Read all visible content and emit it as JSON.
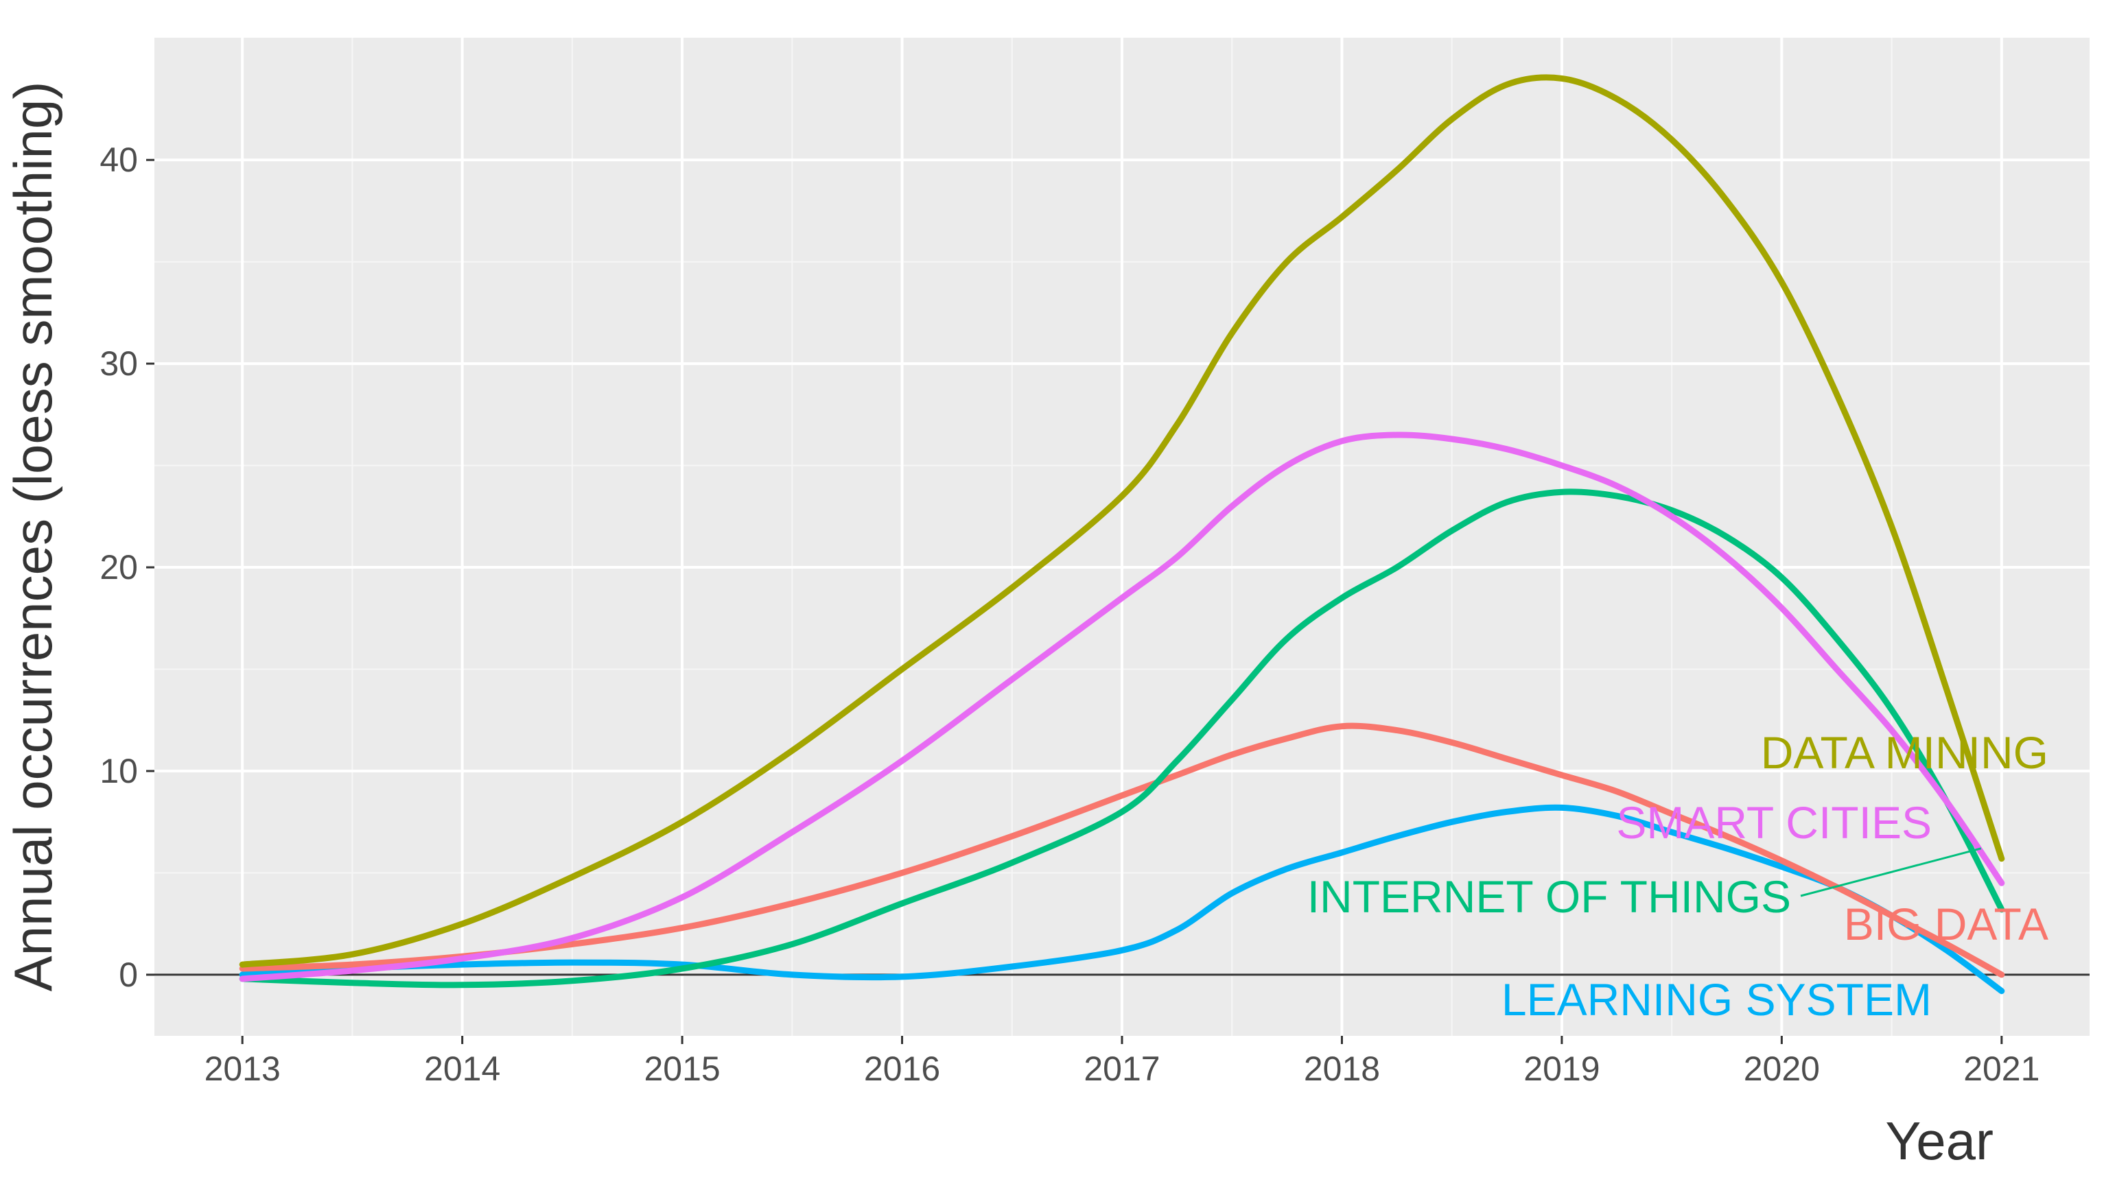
{
  "chart_data": {
    "type": "line",
    "title": "",
    "xlabel": "Year",
    "ylabel": "Annual occurrences (loess smoothing)",
    "xlim": [
      2012.6,
      2021.4
    ],
    "ylim": [
      -3,
      46
    ],
    "xticks": [
      2013,
      2014,
      2015,
      2016,
      2017,
      2018,
      2019,
      2020,
      2021
    ],
    "yticks": [
      0,
      10,
      20,
      30,
      40
    ],
    "hline": 0,
    "grid": true,
    "series": [
      {
        "name": "DATA MINING",
        "color": "#a3a500",
        "label": "DATA MINING",
        "x": [
          2013,
          2013.5,
          2014,
          2014.5,
          2015,
          2015.5,
          2016,
          2016.5,
          2017,
          2017.25,
          2017.5,
          2017.75,
          2018,
          2018.25,
          2018.5,
          2018.75,
          2019,
          2019.25,
          2019.5,
          2019.75,
          2020,
          2020.25,
          2020.5,
          2020.75,
          2021
        ],
        "y": [
          0.5,
          1.0,
          2.5,
          4.8,
          7.5,
          11.0,
          15.0,
          19.0,
          23.5,
          27.0,
          31.5,
          35.0,
          37.2,
          39.5,
          42.0,
          43.7,
          44.0,
          43.0,
          41.0,
          38.0,
          34.0,
          28.5,
          22.0,
          14.0,
          5.7
        ]
      },
      {
        "name": "SMART CITIES",
        "color": "#e76bf3",
        "label": "SMART CITIES",
        "x": [
          2013,
          2013.5,
          2014,
          2014.5,
          2015,
          2015.5,
          2016,
          2016.5,
          2017,
          2017.25,
          2017.5,
          2017.75,
          2018,
          2018.25,
          2018.5,
          2018.75,
          2019,
          2019.25,
          2019.5,
          2019.75,
          2020,
          2020.25,
          2020.5,
          2020.75,
          2021
        ],
        "y": [
          -0.2,
          0.2,
          0.8,
          1.8,
          3.8,
          7.0,
          10.5,
          14.5,
          18.5,
          20.5,
          23.0,
          25.0,
          26.2,
          26.5,
          26.3,
          25.8,
          25.0,
          24.0,
          22.5,
          20.5,
          18.0,
          15.0,
          12.0,
          8.5,
          4.5
        ]
      },
      {
        "name": "INTERNET OF THINGS",
        "color": "#00bf7d",
        "label": "INTERNET OF THINGS",
        "x": [
          2013,
          2013.5,
          2014,
          2014.5,
          2015,
          2015.5,
          2016,
          2016.5,
          2017,
          2017.25,
          2017.5,
          2017.75,
          2018,
          2018.25,
          2018.5,
          2018.75,
          2019,
          2019.25,
          2019.5,
          2019.75,
          2020,
          2020.25,
          2020.5,
          2020.75,
          2021
        ],
        "y": [
          -0.2,
          -0.4,
          -0.5,
          -0.3,
          0.3,
          1.5,
          3.5,
          5.5,
          8.0,
          10.5,
          13.5,
          16.5,
          18.5,
          20.0,
          21.8,
          23.2,
          23.7,
          23.5,
          22.8,
          21.5,
          19.5,
          16.5,
          13.0,
          8.5,
          3.2
        ]
      },
      {
        "name": "BIG DATA",
        "color": "#f8766d",
        "label": "BIG DATA",
        "x": [
          2013,
          2013.5,
          2014,
          2014.5,
          2015,
          2015.5,
          2016,
          2016.5,
          2017,
          2017.25,
          2017.5,
          2017.75,
          2018,
          2018.25,
          2018.5,
          2018.75,
          2019,
          2019.25,
          2019.5,
          2019.75,
          2020,
          2020.25,
          2020.5,
          2020.75,
          2021
        ],
        "y": [
          0.3,
          0.5,
          0.9,
          1.5,
          2.3,
          3.5,
          5.0,
          6.8,
          8.8,
          9.8,
          10.8,
          11.6,
          12.2,
          12.0,
          11.4,
          10.6,
          9.8,
          9.0,
          7.9,
          6.8,
          5.6,
          4.3,
          2.9,
          1.5,
          0.0
        ]
      },
      {
        "name": "LEARNING SYSTEM",
        "color": "#00b0f6",
        "label": "LEARNING SYSTEM",
        "x": [
          2013,
          2013.5,
          2014,
          2014.5,
          2015,
          2015.5,
          2016,
          2016.5,
          2017,
          2017.25,
          2017.5,
          2017.75,
          2018,
          2018.25,
          2018.5,
          2018.75,
          2019,
          2019.25,
          2019.5,
          2019.75,
          2020,
          2020.25,
          2020.5,
          2020.75,
          2021
        ],
        "y": [
          0.0,
          0.3,
          0.5,
          0.6,
          0.5,
          0.0,
          -0.1,
          0.4,
          1.2,
          2.2,
          4.0,
          5.2,
          6.0,
          6.8,
          7.5,
          8.0,
          8.2,
          7.8,
          7.0,
          6.2,
          5.3,
          4.3,
          2.9,
          1.2,
          -0.8
        ]
      }
    ]
  }
}
